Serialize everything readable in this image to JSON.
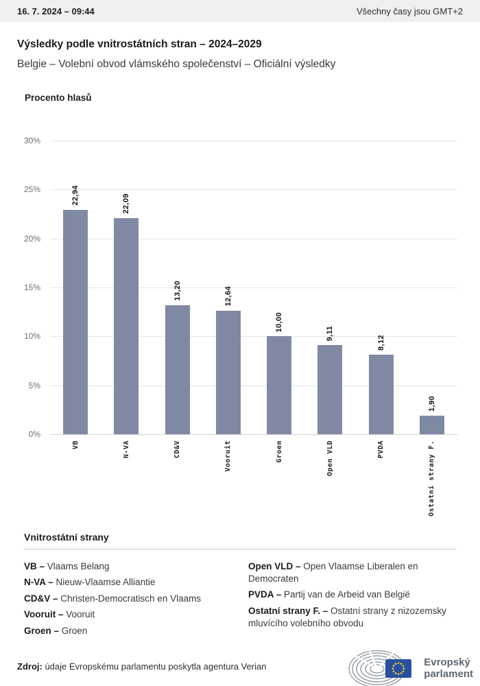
{
  "header": {
    "datetime": "16. 7. 2024 – 09:44",
    "timezone_note": "Všechny časy jsou GMT+2"
  },
  "title": "Výsledky podle vnitrostátních stran – 2024–2029",
  "subtitle": "Belgie – Volební obvod vlámského společenství – Oficiální výsledky",
  "chart_data": {
    "type": "bar",
    "title": "Procento hlasů",
    "categories": [
      "VB",
      "N-VA",
      "CD&V",
      "Vooruit",
      "Groen",
      "Open VLD",
      "PVDA",
      "Ostatní strany F."
    ],
    "values": [
      22.94,
      22.09,
      13.2,
      12.64,
      10.0,
      9.11,
      8.12,
      1.9
    ],
    "value_labels": [
      "22,94",
      "22,09",
      "13,20",
      "12,64",
      "10,00",
      "9,11",
      "8,12",
      "1,90"
    ],
    "xlabel": "",
    "ylabel": "Procento hlasů",
    "ylim": [
      0,
      30
    ],
    "ytick_labels": [
      "30%",
      "25%",
      "20%",
      "15%",
      "10%",
      "5%",
      "0%"
    ],
    "grid": true,
    "legend_position": "none",
    "bar_color": "#8089A4"
  },
  "legend": {
    "heading": "Vnitrostátní strany",
    "columns": [
      [
        {
          "abbr": "VB",
          "name": "Vlaams Belang"
        },
        {
          "abbr": "N-VA",
          "name": "Nieuw-Vlaamse Alliantie"
        },
        {
          "abbr": "CD&V",
          "name": "Christen-Democratisch en Vlaams"
        },
        {
          "abbr": "Vooruit",
          "name": "Vooruit"
        },
        {
          "abbr": "Groen",
          "name": "Groen"
        }
      ],
      [
        {
          "abbr": "Open VLD",
          "name": "Open Vlaamse Liberalen en Democraten"
        },
        {
          "abbr": "PVDA",
          "name": "Partij van de Arbeid van België"
        },
        {
          "abbr": "Ostatní strany F.",
          "name": "Ostatní strany z nizozemsky mluvícího volebního obvodu"
        }
      ]
    ]
  },
  "source": {
    "label": "Zdroj:",
    "text": "údaje Evropskému parlamentu poskytla agentura Verian"
  },
  "logo": {
    "line1": "Evropský",
    "line2": "parlament",
    "flag_blue": "#2850a0",
    "star_gold": "#ffd617"
  }
}
